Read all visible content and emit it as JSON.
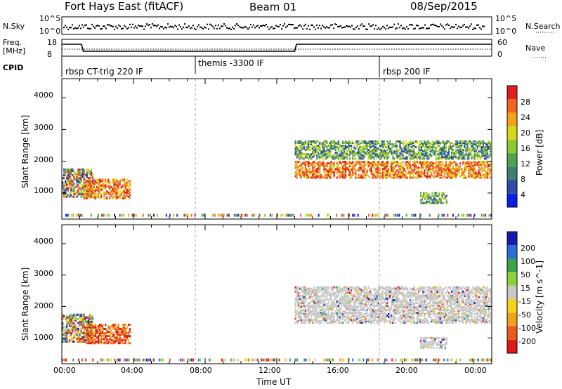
{
  "header": {
    "title": "Fort Hays East (fitACF)",
    "beam": "Beam 01",
    "date": "08/Sep/2015"
  },
  "summary": {
    "nsky_label": "N.Sky",
    "nsearch_label": "N.Search",
    "noise_ticks": [
      "10^5",
      "10^0"
    ],
    "freq_label_top": "Freq.",
    "freq_label_unit": "[MHz]",
    "freq_ticks": [
      "18",
      "8"
    ],
    "nave_label": "Nave",
    "nave_ticks": [
      "60",
      "0"
    ],
    "cpid_label": "CPID",
    "cpid_modes": [
      {
        "label": "rbsp CT-trig 220 IF",
        "start_h": 0.0
      },
      {
        "label": "themis -3300 IF",
        "start_h": 7.5
      },
      {
        "label": "rbsp 200 IF",
        "start_h": 18.0
      }
    ]
  },
  "chart_data": [
    {
      "type": "heatmap",
      "name": "power",
      "ylabel": "Slant Range [km]",
      "xlabel": "",
      "xlim_hours": [
        0,
        24
      ],
      "ylim_km": [
        180,
        4600
      ],
      "yticks": [
        1000,
        2000,
        3000,
        4000
      ],
      "colorbar": {
        "label": "Power [dB]",
        "ticks": [
          "4",
          "8",
          "12",
          "16",
          "20",
          "24",
          "28"
        ],
        "range": [
          0,
          30
        ],
        "colors": [
          "#0a1eea",
          "#2f49a8",
          "#3f7f72",
          "#4ea44f",
          "#8ccb2f",
          "#d7d81a",
          "#f4a21a",
          "#f1651c",
          "#e21d1d"
        ]
      },
      "bands": [
        {
          "t_start_h": 0.0,
          "t_end_h": 1.7,
          "range_km": [
            850,
            1750
          ],
          "level": "mixed"
        },
        {
          "t_start_h": 1.2,
          "t_end_h": 3.8,
          "range_km": [
            800,
            1400
          ],
          "level": "strong"
        },
        {
          "t_start_h": 13.0,
          "t_end_h": 23.9,
          "range_km": [
            1450,
            1950
          ],
          "level": "strong"
        },
        {
          "t_start_h": 13.0,
          "t_end_h": 23.9,
          "range_km": [
            2050,
            2600
          ],
          "level": "moderate"
        },
        {
          "t_start_h": 20.0,
          "t_end_h": 21.5,
          "range_km": [
            650,
            1000
          ],
          "level": "moderate"
        }
      ]
    },
    {
      "type": "heatmap",
      "name": "velocity",
      "ylabel": "Slant Range [km]",
      "xlabel": "Time UT",
      "xlim_hours": [
        0,
        24
      ],
      "ylim_km": [
        180,
        4600
      ],
      "yticks": [
        1000,
        2000,
        3000,
        4000
      ],
      "xticks": [
        "00:00",
        "04:00",
        "08:00",
        "12:00",
        "16:00",
        "20:00",
        "00:00"
      ],
      "colorbar": {
        "label": "Velocity [m s^-1]",
        "ticks": [
          "200",
          "100",
          "50",
          "15",
          "-15",
          "-50",
          "-100",
          "-200"
        ],
        "range": [
          -250,
          250
        ],
        "colors": [
          "#1a1ab0",
          "#2c6cd8",
          "#3aa548",
          "#8ed23a",
          "#c8c8c8",
          "#f6d21a",
          "#f5a01a",
          "#ec5a1a",
          "#e01818"
        ]
      },
      "bands": [
        {
          "t_start_h": 0.0,
          "t_end_h": 1.7,
          "range_km": [
            850,
            1750
          ],
          "level": "mixed"
        },
        {
          "t_start_h": 1.2,
          "t_end_h": 3.8,
          "range_km": [
            800,
            1400
          ],
          "level": "red-orange"
        },
        {
          "t_start_h": 13.0,
          "t_end_h": 23.9,
          "range_km": [
            1450,
            2600
          ],
          "level": "grey-ground"
        },
        {
          "t_start_h": 20.0,
          "t_end_h": 21.5,
          "range_km": [
            650,
            1000
          ],
          "level": "grey-ground"
        }
      ]
    }
  ]
}
